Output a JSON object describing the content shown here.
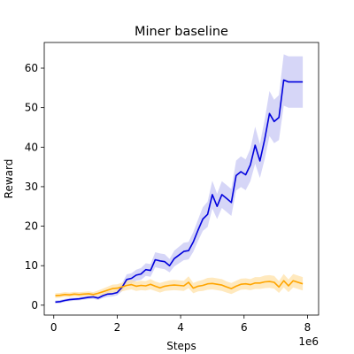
{
  "chart_data": {
    "type": "line",
    "title": "Miner baseline",
    "xlabel": "Steps",
    "ylabel": "Reward",
    "x_offset_label": "1e6",
    "xlim": [
      -0.3,
      8.35
    ],
    "ylim": [
      -2.5,
      66.5
    ],
    "xticks": [
      0,
      2,
      4,
      6,
      8
    ],
    "xtick_labels": [
      "0",
      "2",
      "4",
      "6",
      "8"
    ],
    "yticks": [
      0,
      10,
      20,
      30,
      40,
      50,
      60
    ],
    "ytick_labels": [
      "0",
      "10",
      "20",
      "30",
      "40",
      "50",
      "60"
    ],
    "grid": false,
    "legend": "none",
    "series": [
      {
        "color": "#0000dd",
        "band_color": "#c8c8f4",
        "x": [
          0.05,
          0.2,
          0.35,
          0.5,
          0.65,
          0.8,
          0.95,
          1.1,
          1.25,
          1.4,
          1.55,
          1.7,
          1.85,
          2.0,
          2.15,
          2.3,
          2.45,
          2.6,
          2.75,
          2.9,
          3.05,
          3.2,
          3.35,
          3.5,
          3.65,
          3.8,
          3.95,
          4.1,
          4.25,
          4.4,
          4.55,
          4.7,
          4.85,
          5.0,
          5.15,
          5.3,
          5.45,
          5.6,
          5.75,
          5.9,
          6.05,
          6.2,
          6.35,
          6.5,
          6.65,
          6.8,
          6.95,
          7.1,
          7.25,
          7.4,
          7.55,
          7.7,
          7.85
        ],
        "y": [
          0.8,
          0.9,
          1.2,
          1.4,
          1.5,
          1.6,
          1.8,
          2.0,
          2.1,
          1.8,
          2.4,
          2.8,
          2.9,
          3.2,
          4.5,
          6.5,
          6.8,
          7.6,
          7.9,
          9.0,
          8.8,
          11.5,
          11.2,
          11.0,
          10.0,
          11.8,
          12.7,
          13.6,
          13.8,
          16.0,
          19.0,
          21.8,
          23.0,
          28.0,
          25.0,
          28.0,
          27.0,
          26.0,
          32.8,
          33.8,
          33.0,
          35.5,
          40.5,
          36.5,
          42.0,
          48.5,
          46.5,
          47.5,
          57.0,
          56.5,
          56.5,
          56.5,
          56.5
        ],
        "lower": [
          0.4,
          0.5,
          0.8,
          1.0,
          1.1,
          1.2,
          1.4,
          1.5,
          1.6,
          1.3,
          1.8,
          2.1,
          2.2,
          2.5,
          3.5,
          5.2,
          5.5,
          6.2,
          6.4,
          7.4,
          7.2,
          9.6,
          9.3,
          9.1,
          8.3,
          9.8,
          10.6,
          11.4,
          11.6,
          13.5,
          16.3,
          18.8,
          19.8,
          24.5,
          21.8,
          24.6,
          23.6,
          22.6,
          29.0,
          29.9,
          29.1,
          31.4,
          35.8,
          32.2,
          37.0,
          42.8,
          41.0,
          41.8,
          50.5,
          50.0,
          50.0,
          50.0,
          50.0
        ],
        "upper": [
          1.2,
          1.3,
          1.6,
          1.8,
          1.9,
          2.0,
          2.2,
          2.5,
          2.6,
          2.3,
          3.0,
          3.5,
          3.6,
          3.9,
          5.5,
          7.8,
          8.1,
          9.0,
          9.4,
          10.6,
          10.4,
          13.4,
          13.1,
          12.9,
          11.7,
          13.8,
          14.8,
          15.8,
          16.0,
          18.5,
          21.7,
          24.8,
          26.2,
          31.5,
          28.2,
          31.4,
          30.4,
          29.4,
          36.6,
          37.7,
          36.9,
          39.6,
          45.2,
          40.8,
          47.0,
          54.2,
          52.0,
          53.2,
          63.5,
          63.0,
          63.0,
          63.0,
          63.0
        ]
      },
      {
        "color": "#ffa500",
        "band_color": "#ffe2a8",
        "x": [
          0.05,
          0.2,
          0.35,
          0.5,
          0.65,
          0.8,
          0.95,
          1.1,
          1.25,
          1.4,
          1.55,
          1.7,
          1.85,
          2.0,
          2.15,
          2.3,
          2.45,
          2.6,
          2.75,
          2.9,
          3.05,
          3.2,
          3.35,
          3.5,
          3.65,
          3.8,
          3.95,
          4.1,
          4.25,
          4.4,
          4.55,
          4.7,
          4.85,
          5.0,
          5.15,
          5.3,
          5.45,
          5.6,
          5.75,
          5.9,
          6.05,
          6.2,
          6.35,
          6.5,
          6.65,
          6.8,
          6.95,
          7.1,
          7.25,
          7.4,
          7.55,
          7.7,
          7.85
        ],
        "y": [
          2.4,
          2.5,
          2.7,
          2.6,
          2.8,
          2.7,
          2.8,
          2.9,
          2.7,
          3.0,
          3.4,
          3.8,
          4.2,
          4.3,
          4.6,
          5.0,
          5.2,
          4.8,
          5.0,
          4.9,
          5.3,
          4.8,
          4.4,
          4.8,
          5.0,
          5.1,
          5.0,
          4.9,
          5.8,
          4.3,
          4.8,
          5.0,
          5.4,
          5.5,
          5.3,
          5.1,
          4.6,
          4.2,
          4.8,
          5.3,
          5.4,
          5.2,
          5.6,
          5.6,
          5.9,
          6.0,
          5.8,
          4.6,
          6.2,
          4.9,
          6.2,
          5.8,
          5.4
        ],
        "lower": [
          1.8,
          1.9,
          2.1,
          2.0,
          2.2,
          2.1,
          2.2,
          2.3,
          2.1,
          2.3,
          2.6,
          2.9,
          3.2,
          3.3,
          3.5,
          3.8,
          4.0,
          3.6,
          3.8,
          3.7,
          4.0,
          3.6,
          3.2,
          3.6,
          3.7,
          3.8,
          3.7,
          3.6,
          4.3,
          3.0,
          3.5,
          3.6,
          3.9,
          4.0,
          3.8,
          3.6,
          3.2,
          2.8,
          3.4,
          3.9,
          4.0,
          3.8,
          4.1,
          4.1,
          4.3,
          4.4,
          4.2,
          3.1,
          4.5,
          3.3,
          4.5,
          4.1,
          3.7
        ],
        "upper": [
          3.0,
          3.1,
          3.3,
          3.2,
          3.4,
          3.3,
          3.4,
          3.5,
          3.3,
          3.7,
          4.2,
          4.7,
          5.2,
          5.3,
          5.7,
          6.2,
          6.4,
          6.0,
          6.2,
          6.1,
          6.6,
          6.0,
          5.6,
          6.0,
          6.3,
          6.4,
          6.3,
          6.2,
          7.3,
          5.6,
          6.1,
          6.4,
          6.9,
          7.0,
          6.8,
          6.6,
          6.0,
          5.6,
          6.2,
          6.7,
          6.8,
          6.6,
          7.1,
          7.1,
          7.5,
          7.6,
          7.4,
          6.1,
          7.9,
          6.5,
          7.9,
          7.5,
          7.1
        ]
      }
    ]
  }
}
